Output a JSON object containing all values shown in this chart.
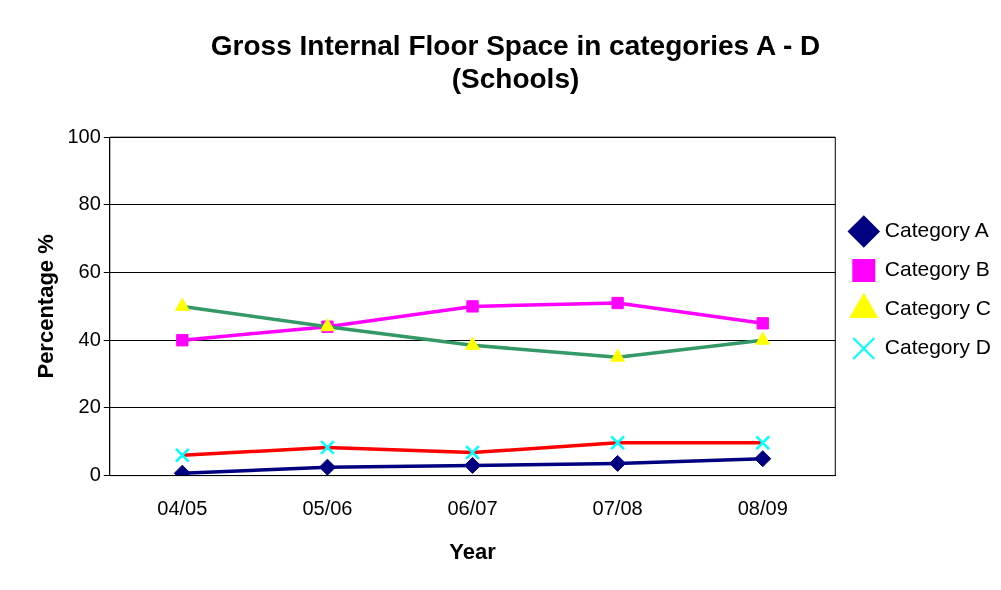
{
  "chart_data": {
    "type": "line",
    "title": "Gross Internal Floor Space in categories A - D (Schools)",
    "xlabel": "Year",
    "ylabel": "Percentage %",
    "categories": [
      "04/05",
      "05/06",
      "06/07",
      "07/08",
      "08/09"
    ],
    "series": [
      {
        "name": "Category A",
        "color": "#000080",
        "marker": "diamond",
        "values": [
          0.7,
          2.5,
          3,
          3.6,
          5
        ]
      },
      {
        "name": "Category B",
        "color": "#ff00ff",
        "marker": "square",
        "values": [
          40,
          44,
          50,
          51,
          45
        ]
      },
      {
        "name": "Category C",
        "color": "#339966",
        "colors": [
          "#ffff00",
          "#ffff00",
          "#ffff00",
          "#ffff00",
          "#ffff00"
        ],
        "marker": "triangle",
        "values": [
          50,
          44,
          38.5,
          35,
          40
        ]
      },
      {
        "name": "Category D",
        "color": "#ff0000",
        "colors": [
          "#00ffff",
          "#00ffff",
          "#00ffff",
          "#00ffff",
          "#00ffff"
        ],
        "marker": "cross",
        "values": [
          6,
          8.3,
          6.8,
          9.7,
          9.7
        ]
      }
    ],
    "ylim": [
      0,
      100
    ],
    "yticks": [
      0,
      20,
      40,
      60,
      80,
      100
    ],
    "grid": "y",
    "legend": "right",
    "line_style": "solid"
  }
}
